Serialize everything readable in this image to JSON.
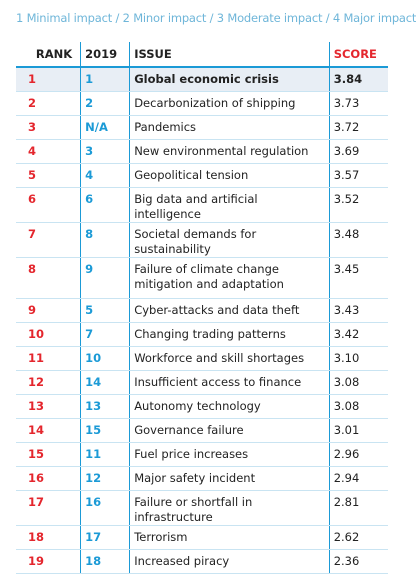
{
  "legend": "1 Minimal impact / 2 Minor impact / 3 Moderate impact / 4 Major impact",
  "headers": {
    "rank": "RANK",
    "prev": "2019",
    "issue": "ISSUE",
    "score": "SCORE"
  },
  "rows": [
    {
      "rank": "1",
      "prev": "1",
      "issue": "Global economic crisis",
      "score": "3.84"
    },
    {
      "rank": "2",
      "prev": "2",
      "issue": "Decarbonization of shipping",
      "score": "3.73"
    },
    {
      "rank": "3",
      "prev": "N/A",
      "issue": "Pandemics",
      "score": "3.72"
    },
    {
      "rank": "4",
      "prev": "3",
      "issue": "New environmental regulation",
      "score": "3.69"
    },
    {
      "rank": "5",
      "prev": "4",
      "issue": "Geopolitical tension",
      "score": "3.57"
    },
    {
      "rank": "6",
      "prev": "6",
      "issue": "Big data and artificial intelligence",
      "score": "3.52"
    },
    {
      "rank": "7",
      "prev": "8",
      "issue": "Societal demands for sustainability",
      "score": "3.48"
    },
    {
      "rank": "8",
      "prev": "9",
      "issue": "Failure of climate change mitigation and adaptation",
      "score": "3.45"
    },
    {
      "rank": "9",
      "prev": "5",
      "issue": "Cyber-attacks and data theft",
      "score": "3.43"
    },
    {
      "rank": "10",
      "prev": "7",
      "issue": "Changing trading patterns",
      "score": "3.42"
    },
    {
      "rank": "11",
      "prev": "10",
      "issue": "Workforce and skill shortages",
      "score": "3.10"
    },
    {
      "rank": "12",
      "prev": "14",
      "issue": "Insufficient access to finance",
      "score": "3.08"
    },
    {
      "rank": "13",
      "prev": "13",
      "issue": "Autonomy technology",
      "score": "3.08"
    },
    {
      "rank": "14",
      "prev": "15",
      "issue": "Governance failure",
      "score": "3.01"
    },
    {
      "rank": "15",
      "prev": "11",
      "issue": "Fuel price increases",
      "score": "2.96"
    },
    {
      "rank": "16",
      "prev": "12",
      "issue": "Major safety incident",
      "score": "2.94"
    },
    {
      "rank": "17",
      "prev": "16",
      "issue": "Failure or shortfall in infrastructure",
      "score": "2.81"
    },
    {
      "rank": "18",
      "prev": "17",
      "issue": "Terrorism",
      "score": "2.62"
    },
    {
      "rank": "19",
      "prev": "18",
      "issue": "Increased piracy",
      "score": "2.36"
    }
  ],
  "colors": {
    "rank": "#e4262d",
    "prev": "#1b9ad6",
    "legend": "#6fb6d9",
    "highlight_row": "#e8eef5"
  }
}
